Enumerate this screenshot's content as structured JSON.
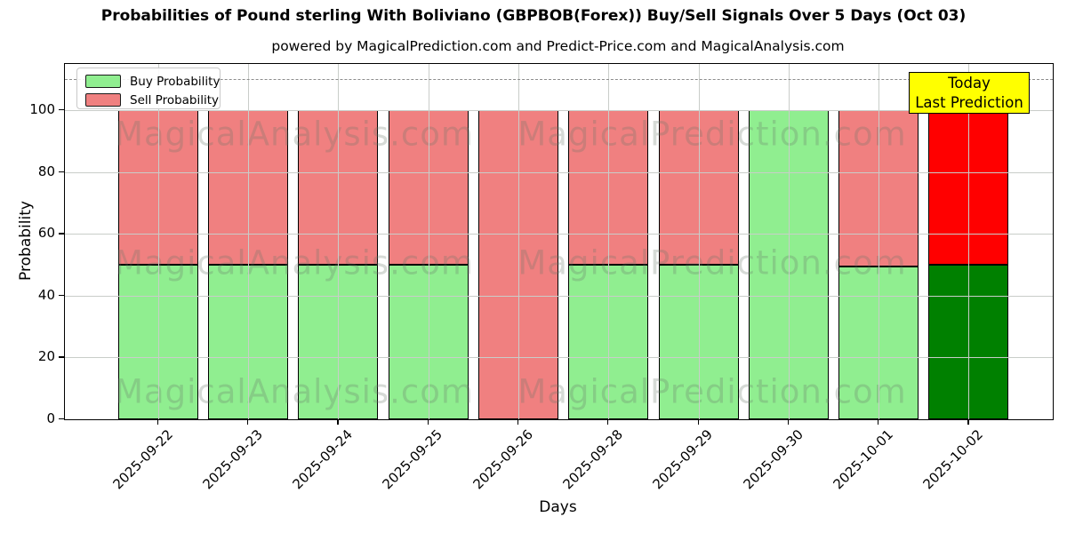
{
  "annotation": {
    "lines": [
      "Today",
      "Last Prediction"
    ],
    "bg": "#ffff00"
  },
  "watermarks": {
    "left_text": "MagicalAnalysis.com",
    "right_text": "MagicalPrediction.com"
  },
  "colors": {
    "buy": "#90ee90",
    "sell": "#f08080",
    "today_buy": "#008000",
    "today_sell": "#ff0000",
    "bar_edge": "#000000",
    "grid": "#c9cdc9",
    "dashed_line": "#8c8c8c",
    "annotation_bg": "#ffff00"
  },
  "chart_data": {
    "type": "bar",
    "stacked": true,
    "title": "Probabilities of Pound sterling With Boliviano (GBPBOB(Forex)) Buy/Sell Signals Over 5 Days (Oct 03)",
    "subtitle": "powered by MagicalPrediction.com and Predict-Price.com and MagicalAnalysis.com",
    "xlabel": "Days",
    "ylabel": "Probability",
    "categories": [
      "2025-09-22",
      "2025-09-23",
      "2025-09-24",
      "2025-09-25",
      "2025-09-26",
      "2025-09-28",
      "2025-09-29",
      "2025-09-30",
      "2025-10-01",
      "2025-10-02"
    ],
    "series": [
      {
        "name": "Buy Probability",
        "color": "#90ee90",
        "values": [
          50,
          50,
          50,
          50,
          0,
          50,
          50,
          100,
          49.5,
          50
        ]
      },
      {
        "name": "Sell Probability",
        "color": "#f08080",
        "values": [
          50,
          50,
          50,
          50,
          100,
          50,
          50,
          0,
          50.5,
          50
        ]
      }
    ],
    "today_index": 9,
    "today_colors": {
      "buy": "#008000",
      "sell": "#ff0000"
    },
    "ylim": [
      0,
      115
    ],
    "yticks": [
      0,
      20,
      40,
      60,
      80,
      100
    ],
    "dashed_hline_y": 110,
    "grid": true,
    "legend_position": "upper left"
  }
}
